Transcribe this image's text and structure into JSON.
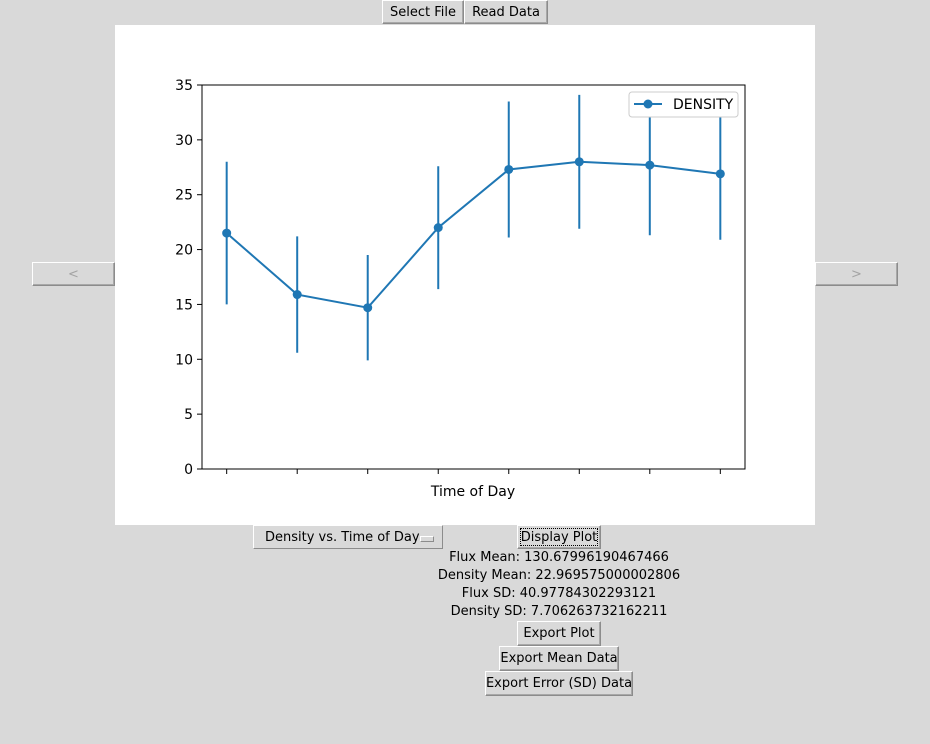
{
  "toolbar": {
    "select_file": "Select File",
    "read_data": "Read Data"
  },
  "nav": {
    "prev": "<",
    "next": ">"
  },
  "plot_select": {
    "value": "Density vs. Time of Day"
  },
  "actions": {
    "display_plot": "Display Plot",
    "export_plot": "Export Plot",
    "export_mean": "Export Mean Data",
    "export_error": "Export Error (SD) Data"
  },
  "stats": {
    "flux_mean": "Flux Mean: 130.67996190467466",
    "density_mean": "Density Mean: 22.969575000002806",
    "flux_sd": "Flux SD: 40.97784302293121",
    "density_sd": "Density SD: 7.706263732162211"
  },
  "chart_data": {
    "type": "line",
    "xlabel": "Time of Day",
    "ylabel": "",
    "ylim": [
      0,
      35
    ],
    "yticks": [
      0,
      5,
      10,
      15,
      20,
      25,
      30,
      35
    ],
    "x": [
      1,
      2,
      3,
      4,
      5,
      6,
      7,
      8
    ],
    "xlim": [
      0.65,
      8.35
    ],
    "xtick_labels": [
      "",
      "",
      "",
      "",
      "",
      "",
      "",
      ""
    ],
    "series": [
      {
        "name": "DENSITY",
        "color": "#1f77b4",
        "values": [
          21.5,
          15.9,
          14.7,
          22.0,
          27.3,
          28.0,
          27.7,
          26.9
        ],
        "errors": [
          6.5,
          5.3,
          4.8,
          5.6,
          6.2,
          6.1,
          6.4,
          6.0
        ]
      }
    ],
    "legend": "top-right",
    "grid": false
  }
}
